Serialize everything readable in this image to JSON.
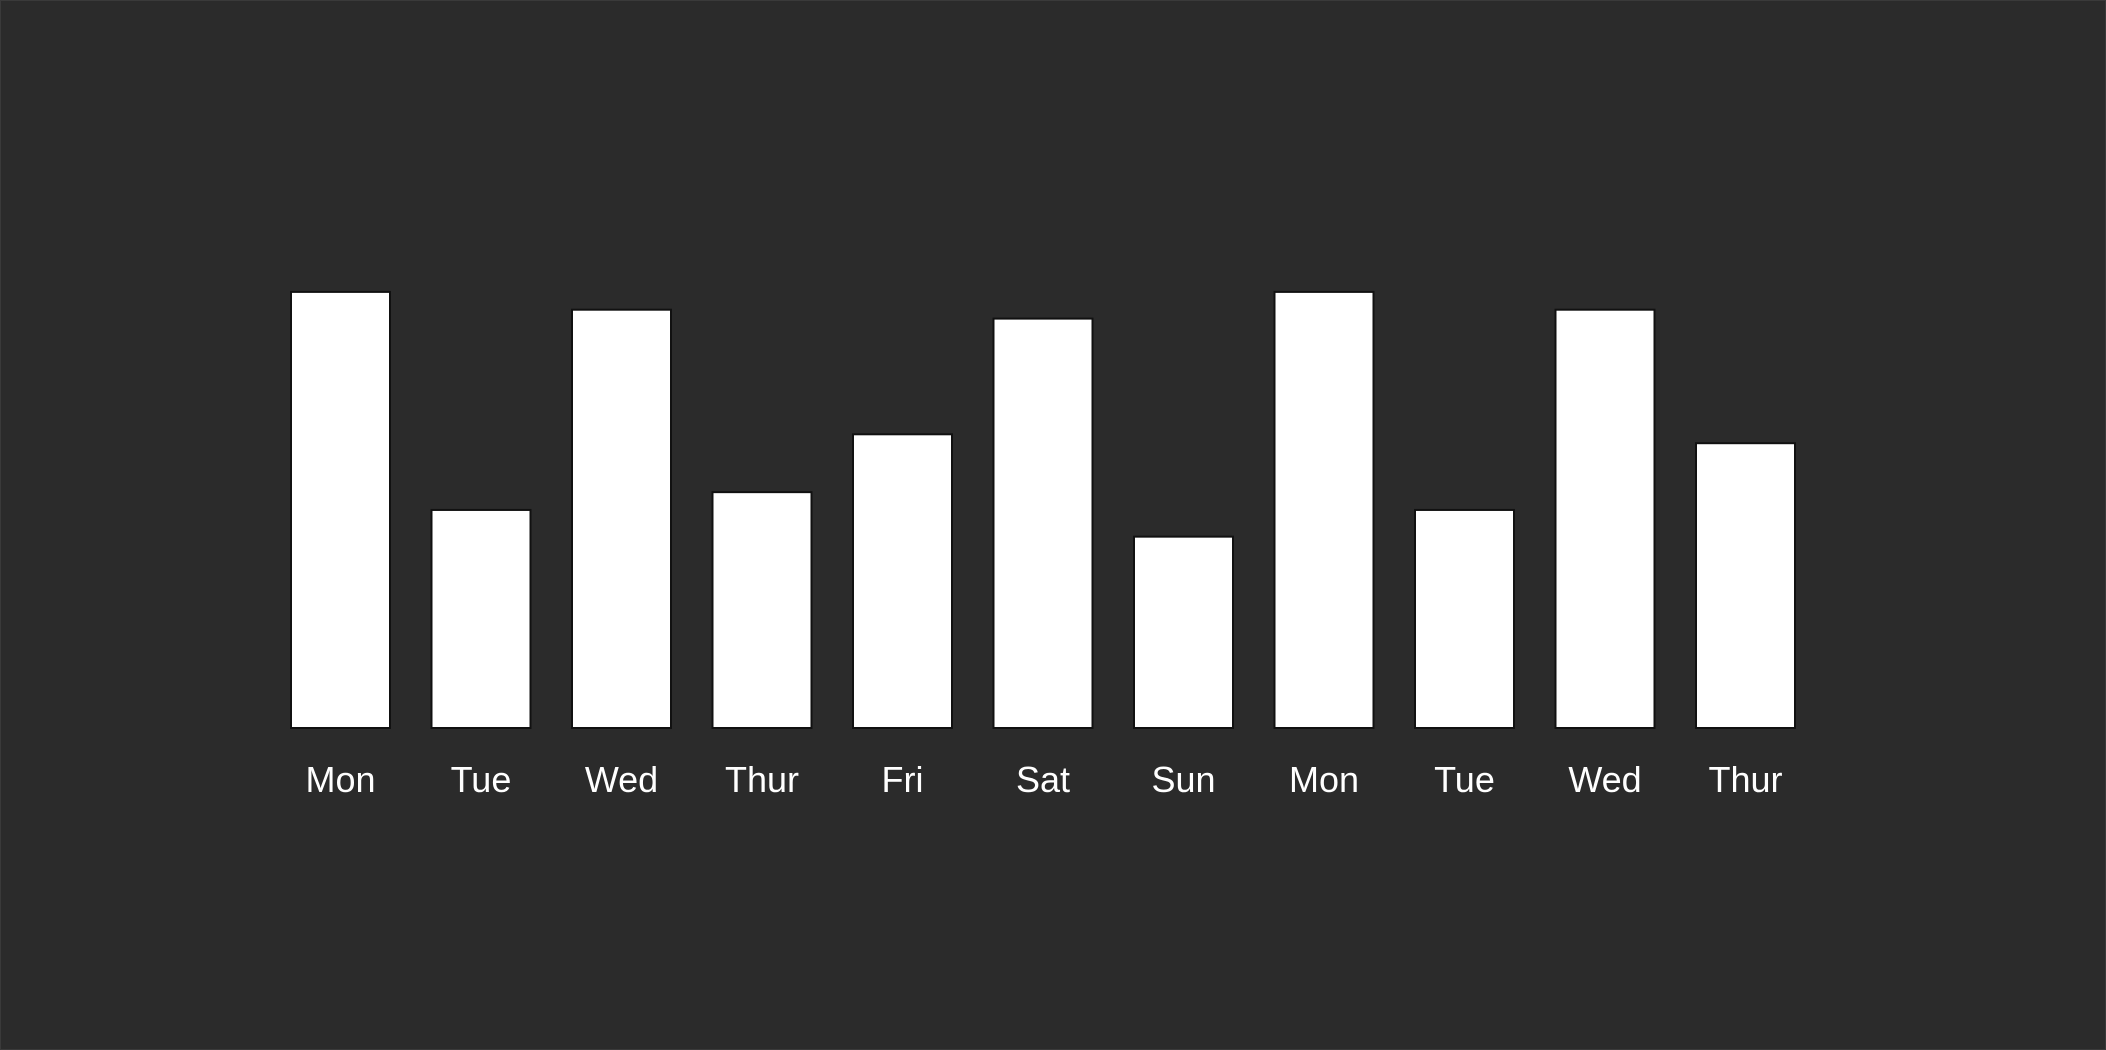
{
  "chart_data": {
    "type": "bar",
    "categories": [
      "Mon",
      "Tue",
      "Wed",
      "Thur",
      "Fri",
      "Sat",
      "Sun",
      "Mon",
      "Tue",
      "Wed",
      "Thur"
    ],
    "values": [
      98,
      49,
      94,
      53,
      66,
      92,
      43,
      98,
      49,
      94,
      64
    ],
    "title": "",
    "xlabel": "",
    "ylabel": "",
    "ylim": [
      0,
      100
    ],
    "grid": false,
    "legend": "none",
    "axes_visible": false,
    "colors": {
      "background": "#2b2b2b",
      "bar_fill": "#ffffff",
      "bar_stroke": "#111111",
      "label": "#ffffff"
    }
  }
}
